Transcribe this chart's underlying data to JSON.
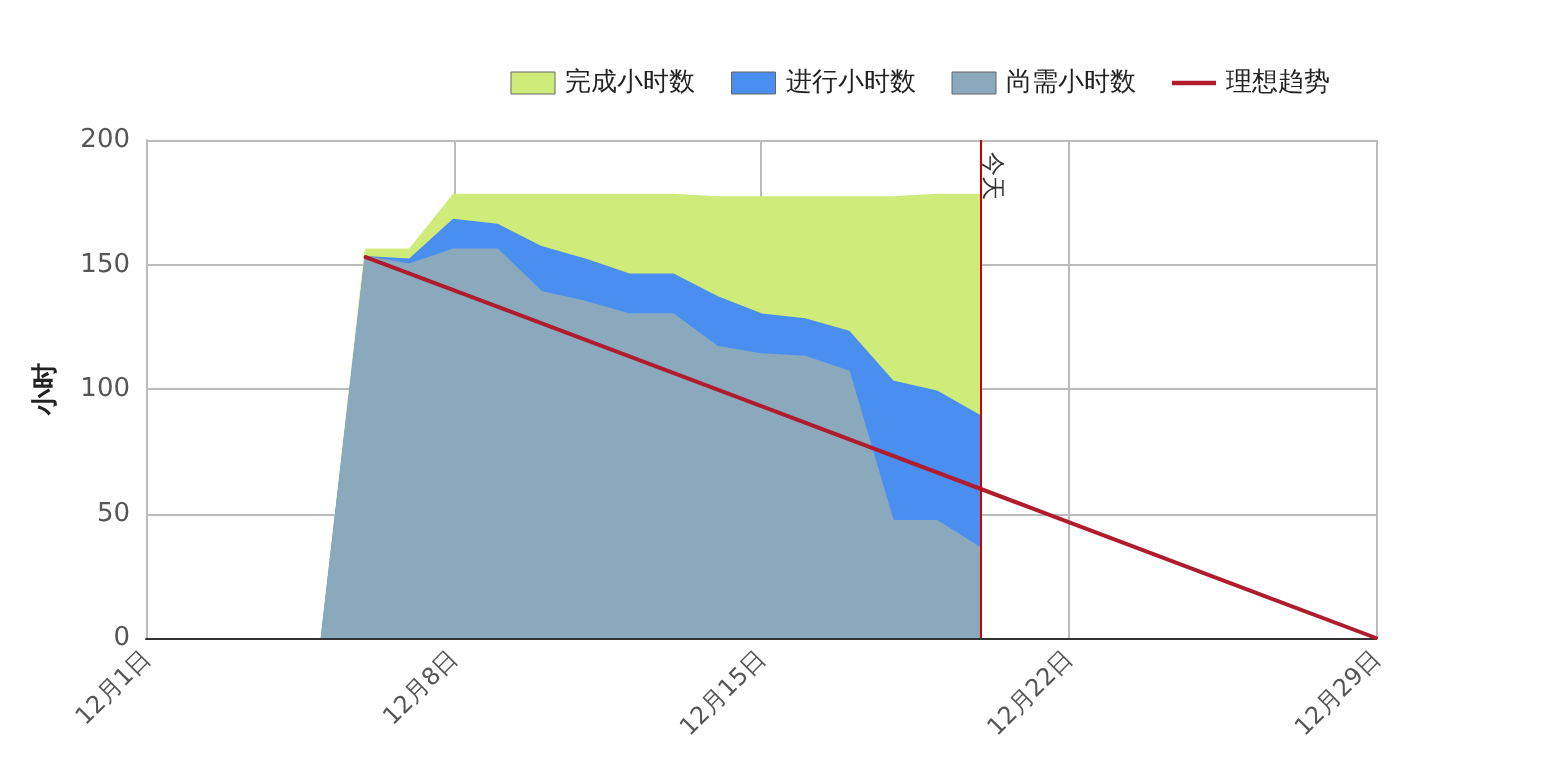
{
  "chart_data": {
    "type": "area",
    "stacked": true,
    "ylabel": "小时",
    "x": [
      "--12-05",
      "--12-06",
      "--12-07",
      "--12-08",
      "--12-09",
      "--12-10",
      "--12-11",
      "--12-12",
      "--12-13",
      "--12-14",
      "--12-15",
      "--12-16",
      "--12-17",
      "--12-18",
      "--12-19",
      "--12-20"
    ],
    "series": [
      {
        "name": "尚需小时数",
        "color": "#8aa9bd",
        "values": [
          0,
          153,
          150,
          156,
          156,
          139,
          135,
          130,
          130,
          117,
          114,
          113,
          107,
          47,
          47,
          36
        ]
      },
      {
        "name": "进行小时数",
        "color": "#4a8ff0",
        "values": [
          0,
          0,
          2,
          12,
          10,
          18,
          17,
          16,
          16,
          20,
          16,
          15,
          16,
          56,
          52,
          53
        ]
      },
      {
        "name": "完成小时数",
        "color": "#cfeb7a",
        "values": [
          0,
          3,
          4,
          10,
          12,
          21,
          26,
          32,
          32,
          40,
          47,
          49,
          54,
          74,
          79,
          89
        ]
      },
      {
        "name": "理想趋势",
        "type": "line",
        "color": "#b01c2e",
        "x": [
          "--12-06",
          "--12-29"
        ],
        "values": [
          153,
          0
        ]
      }
    ],
    "xlim": [
      "--12-01",
      "--12-29"
    ],
    "xticks": [
      {
        "value": "--12-01",
        "label": "12月1日"
      },
      {
        "value": "--12-08",
        "label": "12月8日"
      },
      {
        "value": "--12-15",
        "label": "12月15日"
      },
      {
        "value": "--12-22",
        "label": "12月22日"
      },
      {
        "value": "--12-29",
        "label": "12月29日"
      }
    ],
    "ylim": [
      0,
      200
    ],
    "yticks": [
      0,
      50,
      100,
      150,
      200
    ],
    "ref_lines": [
      {
        "axis": "x",
        "value": "--12-20",
        "label": "今天",
        "color": "#cc0000"
      }
    ],
    "grid": true,
    "legend": "top right"
  }
}
